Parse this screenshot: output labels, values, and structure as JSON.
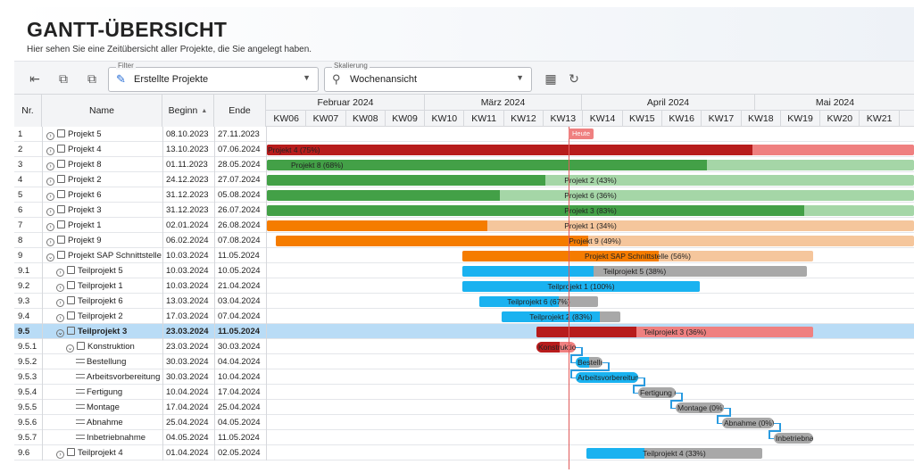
{
  "header": {
    "title": "GANTT-ÜBERSICHT",
    "subtitle": "Hier sehen Sie eine Zeitübersicht aller Projekte, die Sie angelegt haben."
  },
  "toolbar": {
    "filter_label": "Filter",
    "filter_value": "Erstellte Projekte",
    "scale_label": "Skalierung",
    "scale_value": "Wochenansicht"
  },
  "columns": {
    "nr": "Nr.",
    "name": "Name",
    "begin": "Beginn",
    "end": "Ende"
  },
  "months": [
    "Februar 2024",
    "März 2024",
    "April 2024",
    "Mai 2024"
  ],
  "weeks": [
    "KW06",
    "KW07",
    "KW08",
    "KW09",
    "KW10",
    "KW11",
    "KW12",
    "KW13",
    "KW14",
    "KW15",
    "KW16",
    "KW17",
    "KW18",
    "KW19",
    "KW20",
    "KW21"
  ],
  "today_label": "Heute",
  "colors": {
    "red": "#b71c1c",
    "red_light": "#ef8080",
    "green": "#43a047",
    "green_light": "#a5d6a7",
    "orange": "#f57c00",
    "orange_light": "#f5c69c",
    "blue": "#1ab2f0",
    "gray": "#a8a8a8",
    "selection": "#b9dcf6",
    "today": "#e05a5a"
  },
  "rows": [
    {
      "nr": "1",
      "name": "Projekt 5",
      "begin": "08.10.2023",
      "end": "27.11.2023",
      "icon": "cube-icon",
      "indent": 0,
      "expand": true,
      "bar": null
    },
    {
      "nr": "2",
      "name": "Projekt 4",
      "begin": "13.10.2023",
      "end": "07.06.2024",
      "icon": "cube-icon",
      "indent": 0,
      "expand": true,
      "bar": {
        "label": "Projekt 4 (75%)",
        "color": "red",
        "progress": 0.75
      }
    },
    {
      "nr": "3",
      "name": "Projekt 8",
      "begin": "01.11.2023",
      "end": "28.05.2024",
      "icon": "cube-icon",
      "indent": 0,
      "expand": true,
      "bar": {
        "label": "Projekt 8 (68%)",
        "color": "green",
        "progress": 0.68
      }
    },
    {
      "nr": "4",
      "name": "Projekt 2",
      "begin": "24.12.2023",
      "end": "27.07.2024",
      "icon": "cube-icon",
      "indent": 0,
      "expand": true,
      "bar": {
        "label": "Projekt 2 (43%)",
        "color": "green",
        "progress": 0.43
      }
    },
    {
      "nr": "5",
      "name": "Projekt 6",
      "begin": "31.12.2023",
      "end": "05.08.2024",
      "icon": "cube-icon",
      "indent": 0,
      "expand": true,
      "bar": {
        "label": "Projekt 6 (36%)",
        "color": "green",
        "progress": 0.36
      }
    },
    {
      "nr": "6",
      "name": "Projekt 3",
      "begin": "31.12.2023",
      "end": "26.07.2024",
      "icon": "cube-icon",
      "indent": 0,
      "expand": true,
      "bar": {
        "label": "Projekt 3 (83%)",
        "color": "green",
        "progress": 0.83
      }
    },
    {
      "nr": "7",
      "name": "Projekt 1",
      "begin": "02.01.2024",
      "end": "26.08.2024",
      "icon": "cube-icon",
      "indent": 0,
      "expand": true,
      "bar": {
        "label": "Projekt 1 (34%)",
        "color": "orange",
        "progress": 0.34
      }
    },
    {
      "nr": "8",
      "name": "Projekt 9",
      "begin": "06.02.2024",
      "end": "07.08.2024",
      "icon": "cube-icon",
      "indent": 0,
      "expand": true,
      "bar": {
        "label": "Projekt 9 (49%)",
        "color": "orange",
        "progress": 0.49
      }
    },
    {
      "nr": "9",
      "name": "Projekt SAP Schnittstelle",
      "begin": "10.03.2024",
      "end": "11.05.2024",
      "icon": "cube-icon",
      "indent": 0,
      "expand": true,
      "bar": {
        "label": "Projekt SAP Schnittstelle (56%)",
        "color": "orange",
        "progress": 0.56
      }
    },
    {
      "nr": "9.1",
      "name": "Teilprojekt 5",
      "begin": "10.03.2024",
      "end": "10.05.2024",
      "icon": "cube-icon",
      "indent": 1,
      "expand": true,
      "bar": {
        "label": "Teilprojekt 5 (38%)",
        "color": "blue",
        "progress": 0.38
      }
    },
    {
      "nr": "9.2",
      "name": "Teilprojekt 1",
      "begin": "10.03.2024",
      "end": "21.04.2024",
      "icon": "cube-icon",
      "indent": 1,
      "expand": true,
      "bar": {
        "label": "Teilprojekt 1 (100%)",
        "color": "blue",
        "progress": 1.0
      }
    },
    {
      "nr": "9.3",
      "name": "Teilprojekt 6",
      "begin": "13.03.2024",
      "end": "03.04.2024",
      "icon": "cube-icon",
      "indent": 1,
      "expand": true,
      "bar": {
        "label": "Teilprojekt 6 (67%)",
        "color": "blue",
        "progress": 0.67
      }
    },
    {
      "nr": "9.4",
      "name": "Teilprojekt 2",
      "begin": "17.03.2024",
      "end": "07.04.2024",
      "icon": "cube-icon",
      "indent": 1,
      "expand": true,
      "bar": {
        "label": "Teilprojekt 2 (83%)",
        "color": "blue",
        "progress": 0.83
      }
    },
    {
      "nr": "9.5",
      "name": "Teilprojekt 3",
      "begin": "23.03.2024",
      "end": "11.05.2024",
      "icon": "cube-icon",
      "indent": 1,
      "expand": true,
      "selected": true,
      "bar": {
        "label": "Teilprojekt 3 (36%)",
        "color": "red",
        "progress": 0.36
      }
    },
    {
      "nr": "9.5.1",
      "name": "Konstruktion",
      "begin": "23.03.2024",
      "end": "30.03.2024",
      "icon": "cube-icon",
      "indent": 2,
      "expand": true,
      "bar": {
        "label": "Konstruktion",
        "color": "red",
        "progress": 0.6
      }
    },
    {
      "nr": "9.5.2",
      "name": "Bestellung",
      "begin": "30.03.2024",
      "end": "04.04.2024",
      "icon": "task-icon",
      "indent": 3,
      "expand": false,
      "bar": {
        "label": "Bestellung",
        "color": "blue",
        "progress": 0.5
      }
    },
    {
      "nr": "9.5.3",
      "name": "Arbeitsvorbereitung",
      "begin": "30.03.2024",
      "end": "10.04.2024",
      "icon": "task-icon",
      "indent": 3,
      "expand": false,
      "bar": {
        "label": "Arbeitsvorbereitung",
        "color": "blue",
        "progress": 1.0
      }
    },
    {
      "nr": "9.5.4",
      "name": "Fertigung",
      "begin": "10.04.2024",
      "end": "17.04.2024",
      "icon": "task-icon",
      "indent": 3,
      "expand": false,
      "bar": {
        "label": "Fertigung (0%)",
        "color": "gray",
        "progress": 0
      }
    },
    {
      "nr": "9.5.5",
      "name": "Montage",
      "begin": "17.04.2024",
      "end": "25.04.2024",
      "icon": "task-icon",
      "indent": 3,
      "expand": false,
      "bar": {
        "label": "Montage (0%)",
        "color": "gray",
        "progress": 0
      }
    },
    {
      "nr": "9.5.6",
      "name": "Abnahme",
      "begin": "25.04.2024",
      "end": "04.05.2024",
      "icon": "task-icon",
      "indent": 3,
      "expand": false,
      "bar": {
        "label": "Abnahme (0%)",
        "color": "gray",
        "progress": 0
      }
    },
    {
      "nr": "9.5.7",
      "name": "Inbetriebnahme",
      "begin": "04.05.2024",
      "end": "11.05.2024",
      "icon": "task-icon",
      "indent": 3,
      "expand": false,
      "bar": {
        "label": "Inbetriebnahme",
        "color": "gray",
        "progress": 0
      }
    },
    {
      "nr": "9.6",
      "name": "Teilprojekt 4",
      "begin": "01.04.2024",
      "end": "02.05.2024",
      "icon": "cube-icon",
      "indent": 1,
      "expand": true,
      "bar": {
        "label": "Teilprojekt 4 (33%)",
        "color": "blue",
        "progress": 0.33
      }
    }
  ]
}
